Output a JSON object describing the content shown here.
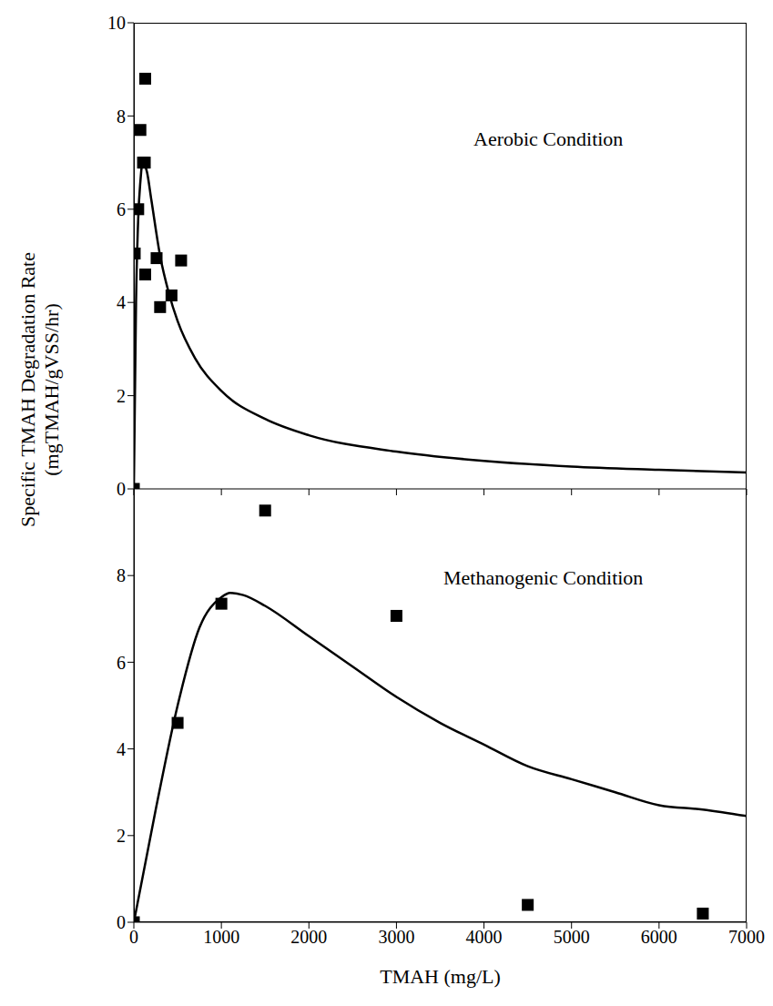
{
  "chart_data": [
    {
      "type": "scatter",
      "annotation": "Aerobic Condition",
      "ylabel": "Specific TMAH Degradation Rate (mgTMAH/gVSS/hr)",
      "xlim": [
        0,
        7000
      ],
      "xticks": [
        0,
        1000,
        2000,
        3000,
        4000,
        5000,
        6000,
        7000
      ],
      "ylim": [
        0,
        10
      ],
      "yticks": [
        0,
        2,
        4,
        6,
        8,
        10
      ],
      "tick_labels": "y",
      "grid": false,
      "series": [
        {
          "type": "scatter",
          "marker": "square",
          "color": "#000000",
          "x": [
            0,
            10,
            50,
            75,
            105,
            125,
            130,
            130,
            260,
            300,
            430,
            540
          ],
          "values": [
            0,
            5.05,
            6.0,
            7.7,
            7.0,
            7.0,
            8.8,
            4.6,
            4.95,
            3.9,
            4.15,
            4.9
          ]
        },
        {
          "type": "line",
          "line_style": "solid",
          "color": "#000000",
          "x": [
            0,
            25,
            50,
            75,
            100,
            125,
            150,
            200,
            300,
            400,
            500,
            700,
            1000,
            1500,
            2000,
            3000,
            4000,
            5000,
            6000,
            7000
          ],
          "values": [
            0,
            4.0,
            5.8,
            6.6,
            7.0,
            6.95,
            6.8,
            6.2,
            5.0,
            4.2,
            3.6,
            2.8,
            2.1,
            1.5,
            1.15,
            0.8,
            0.6,
            0.48,
            0.41,
            0.35
          ]
        }
      ]
    },
    {
      "type": "scatter",
      "annotation": "Methanogenic Condition",
      "xlabel": "TMAH (mg/L)",
      "xlim": [
        0,
        7000
      ],
      "xticks": [
        0,
        1000,
        2000,
        3000,
        4000,
        5000,
        6000,
        7000
      ],
      "ylim": [
        0,
        10
      ],
      "yticks": [
        0,
        2,
        4,
        6,
        8
      ],
      "grid": false,
      "series": [
        {
          "type": "scatter",
          "marker": "square",
          "color": "#000000",
          "x": [
            0,
            500,
            1000,
            1500,
            3000,
            4500,
            6500
          ],
          "values": [
            0,
            4.6,
            7.35,
            9.5,
            7.07,
            0.4,
            0.2
          ]
        },
        {
          "type": "line",
          "line_style": "solid",
          "color": "#000000",
          "x": [
            0,
            250,
            500,
            750,
            1000,
            1100,
            1250,
            1500,
            2000,
            2500,
            3000,
            3500,
            4000,
            4500,
            5000,
            5500,
            6000,
            6500,
            7000
          ],
          "values": [
            0,
            2.6,
            5.0,
            6.8,
            7.5,
            7.6,
            7.55,
            7.3,
            6.6,
            5.9,
            5.2,
            4.6,
            4.1,
            3.6,
            3.3,
            3.0,
            2.7,
            2.6,
            2.45
          ]
        }
      ]
    }
  ]
}
